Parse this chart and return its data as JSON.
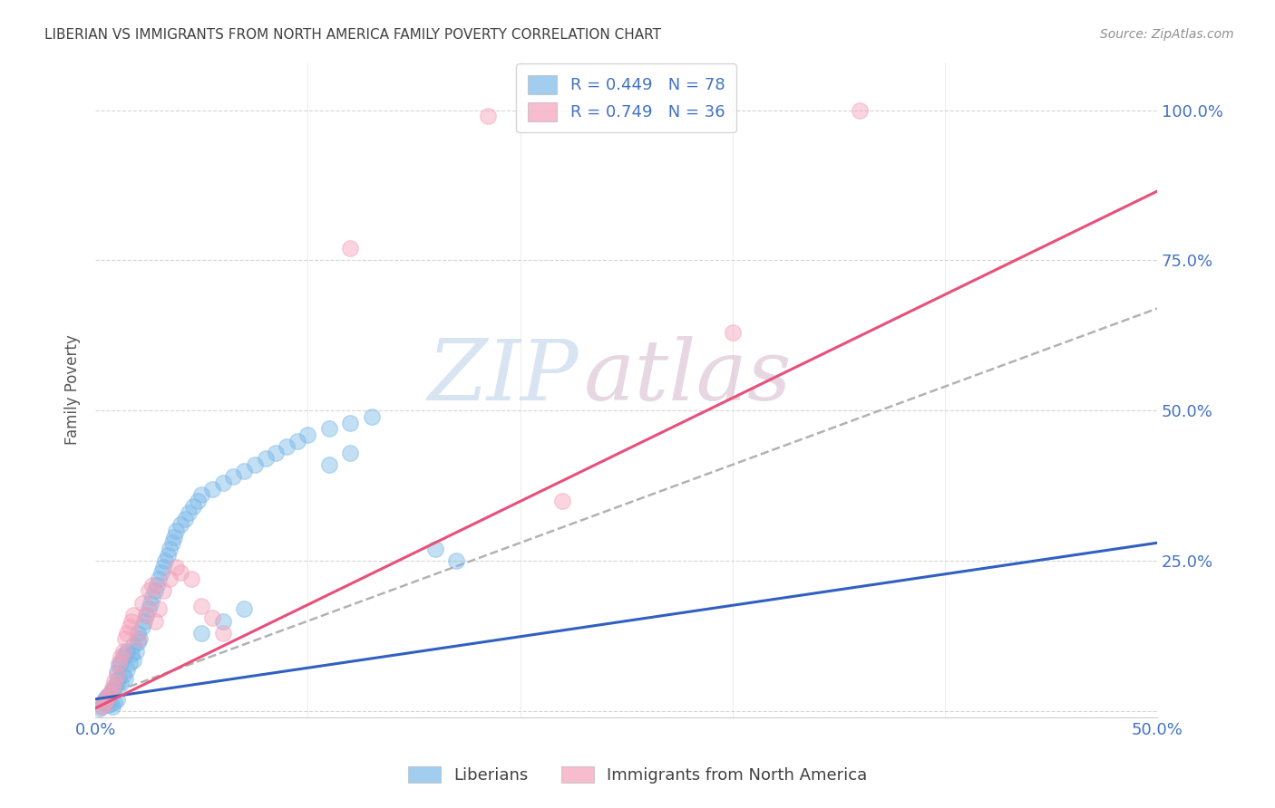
{
  "title": "LIBERIAN VS IMMIGRANTS FROM NORTH AMERICA FAMILY POVERTY CORRELATION CHART",
  "source": "Source: ZipAtlas.com",
  "ylabel": "Family Poverty",
  "xlim": [
    0.0,
    0.5
  ],
  "ylim": [
    -0.01,
    1.08
  ],
  "legend_R1": "R = 0.449",
  "legend_N1": "N = 78",
  "legend_R2": "R = 0.749",
  "legend_N2": "N = 36",
  "blue_color": "#7ab8e8",
  "pink_color": "#f4a0b8",
  "blue_line_color": "#3060c0",
  "pink_line_color": "#e8507a",
  "dash_color": "#aaaaaa",
  "background_color": "#ffffff",
  "grid_color": "#cccccc",
  "tick_color": "#4472c4",
  "title_color": "#404040",
  "source_color": "#909090",
  "blue_slope": 0.52,
  "blue_intercept": 0.02,
  "pink_slope": 1.72,
  "pink_intercept": 0.005,
  "dash_slope": 1.3,
  "dash_intercept": 0.02,
  "blue_x": [
    0.002,
    0.003,
    0.004,
    0.004,
    0.005,
    0.005,
    0.006,
    0.006,
    0.007,
    0.007,
    0.008,
    0.008,
    0.009,
    0.009,
    0.01,
    0.01,
    0.01,
    0.011,
    0.011,
    0.012,
    0.012,
    0.013,
    0.013,
    0.014,
    0.014,
    0.015,
    0.015,
    0.016,
    0.017,
    0.018,
    0.018,
    0.019,
    0.02,
    0.02,
    0.021,
    0.022,
    0.023,
    0.024,
    0.025,
    0.026,
    0.027,
    0.028,
    0.029,
    0.03,
    0.031,
    0.032,
    0.033,
    0.034,
    0.035,
    0.036,
    0.037,
    0.038,
    0.04,
    0.042,
    0.044,
    0.046,
    0.048,
    0.05,
    0.055,
    0.06,
    0.065,
    0.07,
    0.075,
    0.08,
    0.085,
    0.09,
    0.095,
    0.1,
    0.11,
    0.12,
    0.13,
    0.05,
    0.06,
    0.07,
    0.16,
    0.17,
    0.11,
    0.12
  ],
  "blue_y": [
    0.005,
    0.008,
    0.012,
    0.018,
    0.015,
    0.022,
    0.01,
    0.025,
    0.012,
    0.03,
    0.008,
    0.035,
    0.015,
    0.04,
    0.02,
    0.05,
    0.065,
    0.055,
    0.075,
    0.045,
    0.08,
    0.06,
    0.09,
    0.055,
    0.095,
    0.07,
    0.1,
    0.08,
    0.095,
    0.085,
    0.11,
    0.1,
    0.115,
    0.13,
    0.12,
    0.14,
    0.15,
    0.16,
    0.17,
    0.18,
    0.19,
    0.2,
    0.21,
    0.22,
    0.23,
    0.24,
    0.25,
    0.26,
    0.27,
    0.28,
    0.29,
    0.3,
    0.31,
    0.32,
    0.33,
    0.34,
    0.35,
    0.36,
    0.37,
    0.38,
    0.39,
    0.4,
    0.41,
    0.42,
    0.43,
    0.44,
    0.45,
    0.46,
    0.47,
    0.48,
    0.49,
    0.13,
    0.15,
    0.17,
    0.27,
    0.25,
    0.41,
    0.43
  ],
  "pink_x": [
    0.003,
    0.004,
    0.005,
    0.006,
    0.007,
    0.008,
    0.009,
    0.01,
    0.011,
    0.012,
    0.013,
    0.014,
    0.015,
    0.016,
    0.017,
    0.018,
    0.02,
    0.022,
    0.024,
    0.025,
    0.027,
    0.028,
    0.03,
    0.032,
    0.035,
    0.038,
    0.04,
    0.045,
    0.05,
    0.055,
    0.06,
    0.12,
    0.185,
    0.3,
    0.36,
    0.22
  ],
  "pink_y": [
    0.008,
    0.012,
    0.018,
    0.025,
    0.03,
    0.04,
    0.05,
    0.06,
    0.08,
    0.09,
    0.1,
    0.12,
    0.13,
    0.14,
    0.15,
    0.16,
    0.12,
    0.18,
    0.16,
    0.2,
    0.21,
    0.15,
    0.17,
    0.2,
    0.22,
    0.24,
    0.23,
    0.22,
    0.175,
    0.155,
    0.13,
    0.77,
    0.99,
    0.63,
    1.0,
    0.35
  ]
}
